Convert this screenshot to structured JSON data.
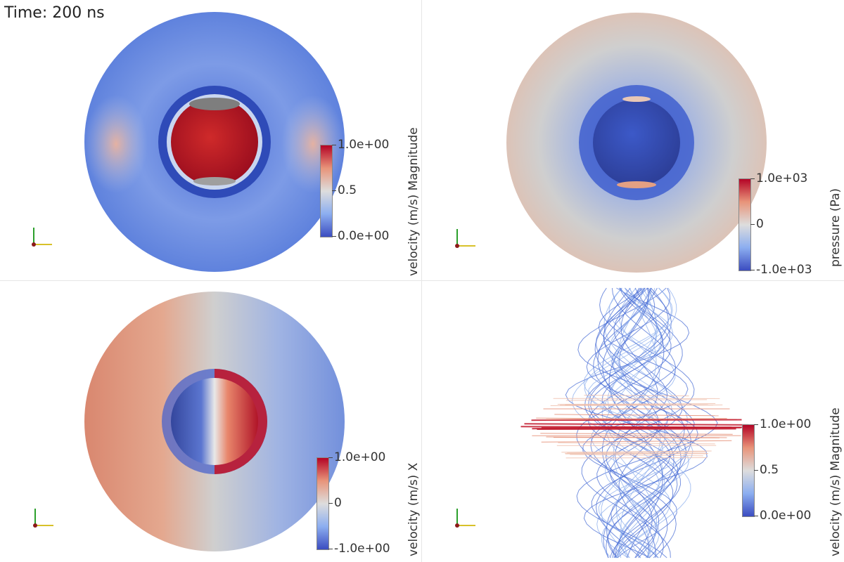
{
  "time_label": "Time: 200 ns",
  "panels": {
    "top_left": {
      "field": "velocity (m/s) Magnitude",
      "ticks": [
        "1.0e+00",
        "0.5",
        "0.0e+00"
      ],
      "range": [
        0,
        1
      ]
    },
    "top_right": {
      "field": "pressure (Pa)",
      "ticks": [
        "1.0e+03",
        "0",
        "-1.0e+03"
      ],
      "range": [
        -1000,
        1000
      ]
    },
    "bottom_left": {
      "field": "velocity (m/s) X",
      "ticks": [
        "1.0e+00",
        "0",
        "-1.0e+00"
      ],
      "range": [
        -1,
        1
      ]
    },
    "bottom_right": {
      "field": "velocity (m/s) Magnitude",
      "ticks": [
        "1.0e+00",
        "0.5",
        "0.0e+00"
      ],
      "range": [
        0,
        1
      ]
    }
  },
  "colormap": {
    "low": "#3b4cc0",
    "mid": "#dddddd",
    "high": "#b40426"
  }
}
